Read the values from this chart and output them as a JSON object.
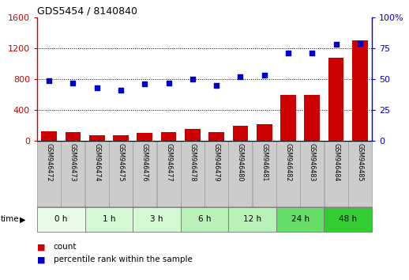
{
  "title": "GDS5454 / 8140840",
  "samples": [
    "GSM946472",
    "GSM946473",
    "GSM946474",
    "GSM946475",
    "GSM946476",
    "GSM946477",
    "GSM946478",
    "GSM946479",
    "GSM946480",
    "GSM946481",
    "GSM946482",
    "GSM946483",
    "GSM946484",
    "GSM946485"
  ],
  "counts": [
    120,
    110,
    70,
    75,
    100,
    110,
    155,
    110,
    195,
    215,
    600,
    600,
    1080,
    1300
  ],
  "percentiles": [
    49,
    47,
    43,
    41,
    46,
    47,
    50,
    45,
    52,
    53,
    71,
    71,
    78,
    79
  ],
  "time_groups": [
    {
      "label": "0 h",
      "start": 0,
      "end": 2,
      "color": "#e8fce8"
    },
    {
      "label": "1 h",
      "start": 2,
      "end": 4,
      "color": "#d4f7d4"
    },
    {
      "label": "3 h",
      "start": 4,
      "end": 6,
      "color": "#d4f7d4"
    },
    {
      "label": "6 h",
      "start": 6,
      "end": 8,
      "color": "#b8f0b8"
    },
    {
      "label": "12 h",
      "start": 8,
      "end": 10,
      "color": "#b8f0b8"
    },
    {
      "label": "24 h",
      "start": 10,
      "end": 12,
      "color": "#66dd66"
    },
    {
      "label": "48 h",
      "start": 12,
      "end": 14,
      "color": "#33cc33"
    }
  ],
  "bar_color": "#cc0000",
  "dot_color": "#0000cc",
  "left_ylim": [
    0,
    1600
  ],
  "right_ylim": [
    0,
    100
  ],
  "left_yticks": [
    0,
    400,
    800,
    1200,
    1600
  ],
  "right_yticks": [
    0,
    25,
    50,
    75,
    100
  ],
  "sample_bg": "#cccccc",
  "sample_border": "#999999"
}
